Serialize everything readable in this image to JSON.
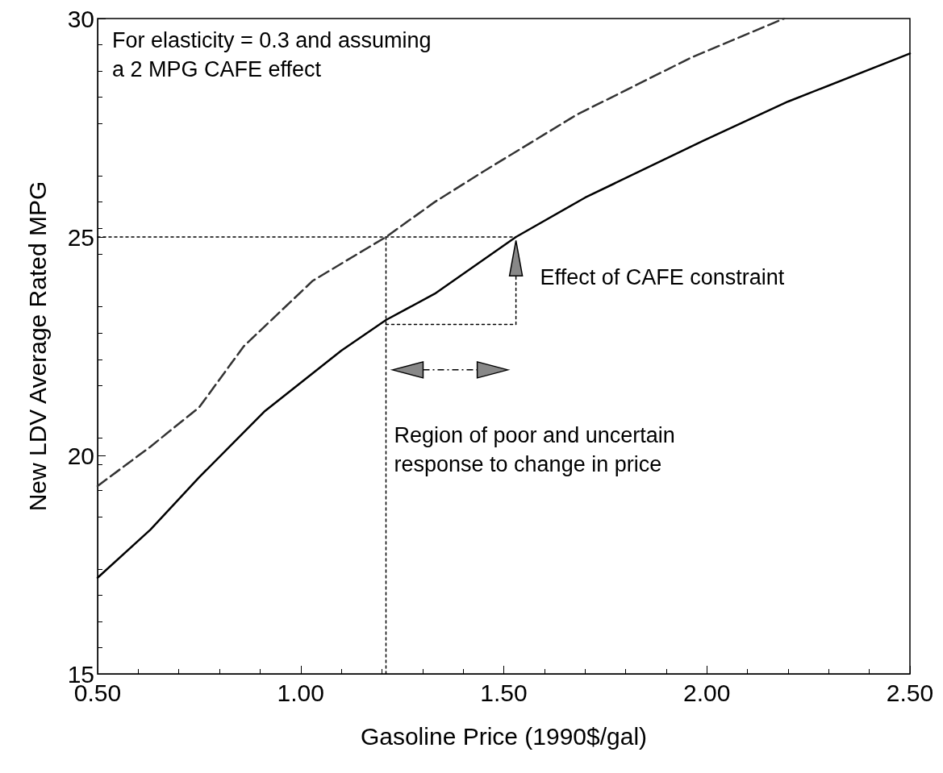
{
  "chart_data": {
    "type": "line",
    "xlabel": "Gasoline Price (1990$/gal)",
    "ylabel": "New LDV Average Rated MPG",
    "xlim": [
      0.5,
      2.5
    ],
    "xticks": [
      {
        "value": 0.5,
        "label": "0.50"
      },
      {
        "value": 1.0,
        "label": "1.00"
      },
      {
        "value": 1.5,
        "label": "1.50"
      },
      {
        "value": 2.0,
        "label": "2.00"
      },
      {
        "value": 2.5,
        "label": "2.50"
      }
    ],
    "ylim": [
      15,
      30
    ],
    "yticks": [
      15,
      20,
      25,
      30
    ],
    "grid": false,
    "marker": "none",
    "series": [
      {
        "color": "#000000",
        "line_style": "solid",
        "x": [
          0.5,
          0.63,
          0.75,
          0.91,
          1.1,
          1.21,
          1.33,
          1.53,
          1.7,
          1.99,
          2.2,
          2.5
        ],
        "values": [
          17.2,
          18.3,
          19.5,
          21.0,
          22.4,
          23.1,
          23.7,
          25.0,
          25.9,
          27.2,
          28.1,
          29.2
        ]
      },
      {
        "color": "#333333",
        "line_style": "dashed",
        "x": [
          0.5,
          0.63,
          0.75,
          0.86,
          1.03,
          1.21,
          1.33,
          1.45,
          1.68,
          1.96,
          2.19
        ],
        "values": [
          19.3,
          20.2,
          21.1,
          22.5,
          24.0,
          25.0,
          25.8,
          26.5,
          27.8,
          29.1,
          30.0
        ]
      },
      {
        "color": "#000000",
        "line_style": "dotted",
        "x": [
          0.5,
          1.53
        ],
        "values": [
          25.0,
          25.0
        ]
      },
      {
        "color": "#000000",
        "line_style": "dotted",
        "x": [
          1.21,
          1.21
        ],
        "values": [
          15.0,
          25.0
        ]
      },
      {
        "color": "#000000",
        "line_style": "dotted",
        "x": [
          1.21,
          1.53,
          1.53
        ],
        "values": [
          23.0,
          23.0,
          24.1
        ]
      }
    ],
    "annotations": [
      "For elasticity = 0.3 and assuming\na 2 MPG CAFE effect",
      "Effect of CAFE constraint",
      "Region of poor and uncertain\nresponse to change in price"
    ]
  }
}
